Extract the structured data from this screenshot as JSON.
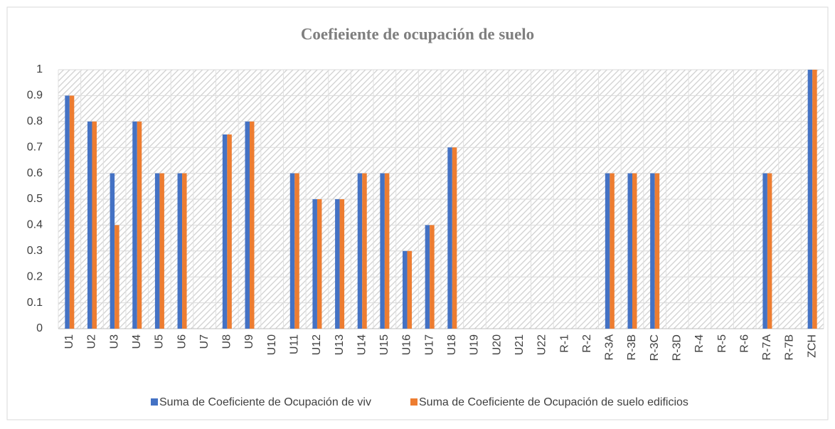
{
  "chart_data": {
    "type": "bar",
    "title": "Coefieiente de ocupación de suelo",
    "categories": [
      "U1",
      "U2",
      "U3",
      "U4",
      "U5",
      "U6",
      "U7",
      "U8",
      "U9",
      "U10",
      "U11",
      "U12",
      "U13",
      "U14",
      "U15",
      "U16",
      "U17",
      "U18",
      "U19",
      "U20",
      "U21",
      "U22",
      "R-1",
      "R-2",
      "R-3A",
      "R-3B",
      "R-3C",
      "R-3D",
      "R-4",
      "R-5",
      "R-6",
      "R-7A",
      "R-7B",
      "ZCH"
    ],
    "series": [
      {
        "name": "Suma de Coeficiente de Ocupación de viv",
        "color": "#4472c4",
        "values": [
          0.9,
          0.8,
          0.6,
          0.8,
          0.6,
          0.6,
          0,
          0.75,
          0.8,
          0,
          0.6,
          0.5,
          0.5,
          0.6,
          0.6,
          0.3,
          0.4,
          0.7,
          0,
          0,
          0,
          0,
          0,
          0,
          0.6,
          0.6,
          0.6,
          0,
          0,
          0,
          0,
          0.6,
          0,
          1
        ]
      },
      {
        "name": "Suma de Coeficiente de Ocupación de suelo edificios",
        "color": "#ed7d31",
        "values": [
          0.9,
          0.8,
          0.4,
          0.8,
          0.6,
          0.6,
          0,
          0.75,
          0.8,
          0,
          0.6,
          0.5,
          0.5,
          0.6,
          0.6,
          0.3,
          0.4,
          0.7,
          0,
          0,
          0,
          0,
          0,
          0,
          0.6,
          0.6,
          0.6,
          0,
          0,
          0,
          0,
          0.6,
          0,
          1
        ]
      }
    ],
    "ylim": [
      0,
      1
    ],
    "yticks": [
      0,
      0.1,
      0.2,
      0.3,
      0.4,
      0.5,
      0.6,
      0.7,
      0.8,
      0.9,
      1
    ],
    "grid": true,
    "legend": "bottom"
  }
}
